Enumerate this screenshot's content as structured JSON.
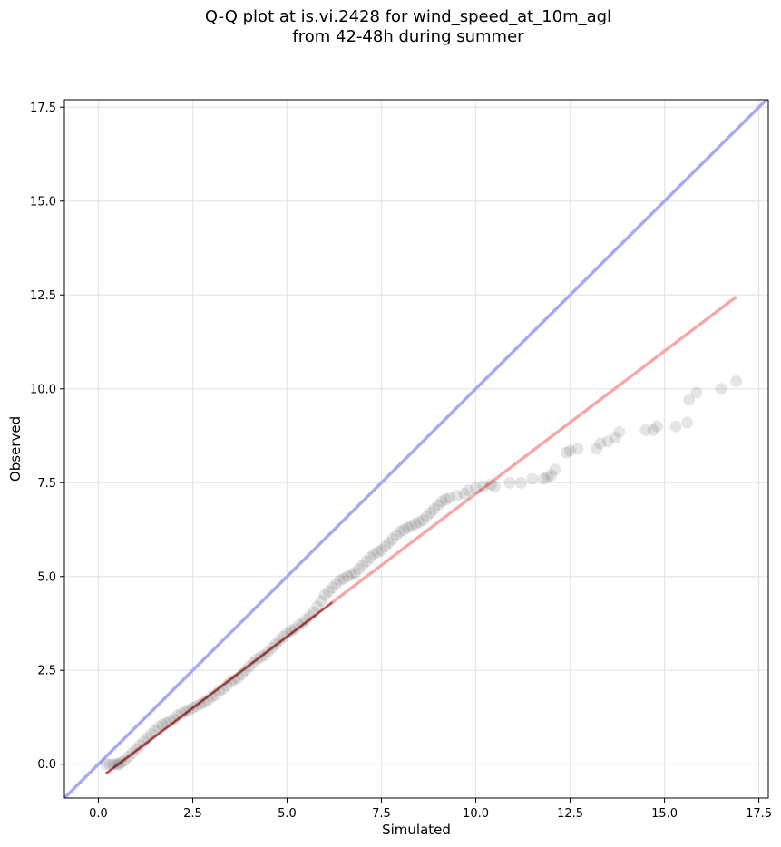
{
  "chart_data": {
    "type": "scatter",
    "title": [
      "Q-Q plot at is.vi.2428 for wind_speed_at_10m_agl",
      "from 42-48h during summer"
    ],
    "xlabel": "Simulated",
    "ylabel": "Observed",
    "xlim": [
      -0.9,
      17.75
    ],
    "ylim": [
      -0.9,
      17.7
    ],
    "xticks": [
      0.0,
      2.5,
      5.0,
      7.5,
      10.0,
      12.5,
      15.0,
      17.5
    ],
    "yticks": [
      0.0,
      2.5,
      5.0,
      7.5,
      10.0,
      12.5,
      15.0,
      17.5
    ],
    "xtick_labels": [
      "0.0",
      "2.5",
      "5.0",
      "7.5",
      "10.0",
      "12.5",
      "15.0",
      "17.5"
    ],
    "ytick_labels": [
      "0.0",
      "2.5",
      "5.0",
      "7.5",
      "10.0",
      "12.5",
      "15.0",
      "17.5"
    ],
    "grid": true,
    "colors": {
      "points": "#000000",
      "identity_line": "#a8a8f5",
      "fit_line": "#f5a8a8",
      "fit_line_dark": "#7a0000"
    },
    "identity_line": {
      "x": [
        -0.9,
        17.75
      ],
      "y": [
        -0.9,
        17.75
      ]
    },
    "fit_line": {
      "x": [
        0.2,
        16.9
      ],
      "y": [
        -0.25,
        12.45
      ]
    },
    "series": [
      {
        "x": [
          0.2,
          0.3,
          0.4,
          0.5,
          0.55,
          0.6,
          0.7,
          0.8,
          0.9,
          1.0,
          1.1,
          1.2,
          1.3,
          1.4,
          1.5,
          1.6,
          1.7,
          1.8,
          1.9,
          2.0,
          2.1,
          2.2,
          2.3,
          2.4,
          2.5,
          2.6,
          2.7,
          2.8,
          2.9,
          3.0,
          3.1,
          3.2,
          3.3,
          3.4,
          3.5,
          3.6,
          3.7,
          3.8,
          3.9,
          4.0,
          4.1,
          4.2,
          4.3,
          4.4,
          4.5,
          4.6,
          4.7,
          4.8,
          4.9,
          5.0,
          5.1,
          5.2,
          5.3,
          5.4,
          5.5,
          5.6,
          5.7,
          5.8,
          5.9,
          6.0,
          6.1,
          6.2,
          6.3,
          6.4,
          6.5,
          6.6,
          6.7,
          6.8,
          6.9,
          7.0,
          7.1,
          7.2,
          7.3,
          7.4,
          7.5,
          7.6,
          7.7,
          7.8,
          7.9,
          8.0,
          8.1,
          8.2,
          8.3,
          8.4,
          8.5,
          8.6,
          8.7,
          8.8,
          8.9,
          9.0,
          9.1,
          9.2,
          9.3,
          9.5,
          9.7,
          9.8,
          10.0,
          10.2,
          10.4,
          10.5,
          10.9,
          11.2,
          11.5,
          11.8,
          11.9,
          12.0,
          12.1,
          12.4,
          12.5,
          12.7,
          13.2,
          13.3,
          13.5,
          13.7,
          13.8,
          14.5,
          14.7,
          14.8,
          15.3,
          15.6,
          15.65,
          15.85,
          16.5,
          16.9
        ],
        "y": [
          0.0,
          0.0,
          0.0,
          0.0,
          0.0,
          0.05,
          0.1,
          0.2,
          0.3,
          0.4,
          0.5,
          0.6,
          0.7,
          0.8,
          0.9,
          1.0,
          1.05,
          1.1,
          1.15,
          1.2,
          1.3,
          1.35,
          1.4,
          1.45,
          1.5,
          1.55,
          1.6,
          1.65,
          1.7,
          1.8,
          1.85,
          1.95,
          2.0,
          2.1,
          2.2,
          2.25,
          2.3,
          2.4,
          2.5,
          2.6,
          2.7,
          2.8,
          2.85,
          2.9,
          3.0,
          3.1,
          3.2,
          3.3,
          3.4,
          3.5,
          3.55,
          3.6,
          3.7,
          3.75,
          3.85,
          3.95,
          4.05,
          4.2,
          4.35,
          4.5,
          4.6,
          4.7,
          4.8,
          4.9,
          4.95,
          5.0,
          5.05,
          5.1,
          5.2,
          5.3,
          5.4,
          5.5,
          5.6,
          5.65,
          5.7,
          5.8,
          5.9,
          6.0,
          6.1,
          6.2,
          6.25,
          6.3,
          6.35,
          6.4,
          6.45,
          6.5,
          6.6,
          6.7,
          6.8,
          6.9,
          7.0,
          7.05,
          7.1,
          7.15,
          7.2,
          7.3,
          7.35,
          7.4,
          7.45,
          7.4,
          7.5,
          7.5,
          7.6,
          7.6,
          7.65,
          7.7,
          7.85,
          8.3,
          8.35,
          8.4,
          8.4,
          8.55,
          8.6,
          8.7,
          8.85,
          8.9,
          8.9,
          9.0,
          9.0,
          9.1,
          9.7,
          9.9,
          10.0,
          10.2
        ]
      }
    ]
  }
}
